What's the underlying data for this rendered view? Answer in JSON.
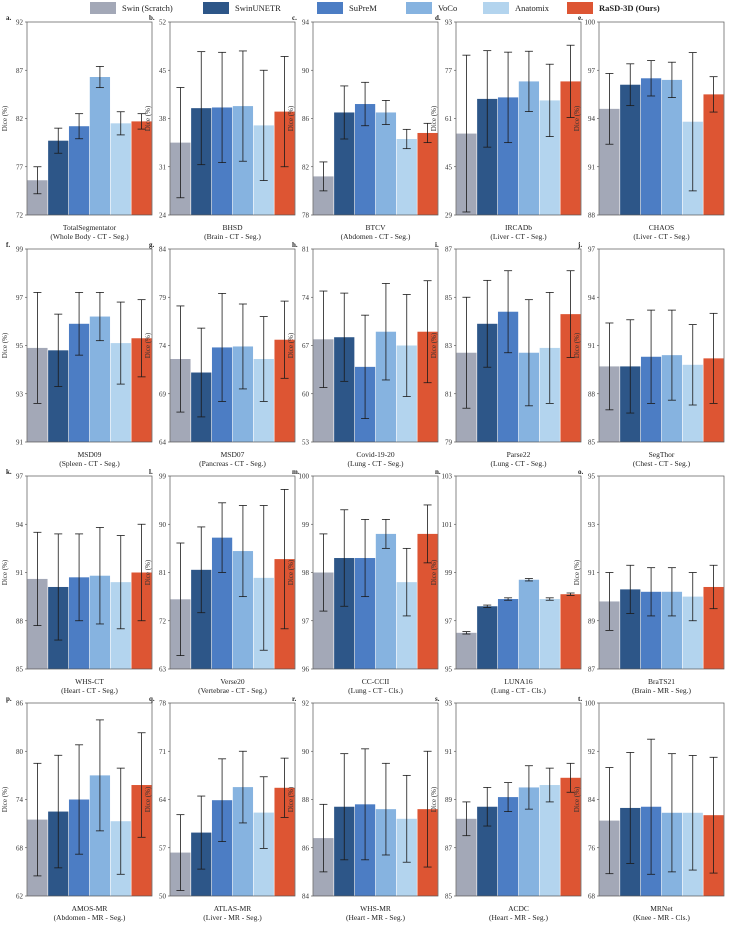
{
  "legend": [
    {
      "name": "Swin (Scratch)",
      "color": "#a3a8b7"
    },
    {
      "name": "SwinUNETR",
      "color": "#2d5688"
    },
    {
      "name": "SuPreM",
      "color": "#4c7dc4"
    },
    {
      "name": "VoCo",
      "color": "#86b3e0"
    },
    {
      "name": "Anatomix",
      "color": "#b3d4ee"
    },
    {
      "name": "RaSD-3D (Ours)",
      "color": "#dd5533"
    }
  ],
  "y_axis_label": "Dice (%)",
  "chart_data": [
    {
      "type": "bar",
      "letter": "a.",
      "ylabel": "Dice (%)",
      "ylim": [
        72,
        92
      ],
      "yticks": [
        72,
        77,
        82,
        87,
        92
      ],
      "xlabel": [
        "TotalSegmentator",
        "(Whole Body - CT - Seg.)"
      ],
      "values": [
        75.6,
        79.7,
        81.2,
        86.3,
        81.5,
        81.7
      ],
      "errors": [
        1.4,
        1.3,
        1.3,
        1.1,
        1.2,
        0.8
      ]
    },
    {
      "type": "bar",
      "letter": "b.",
      "ylabel": "Dice (%)",
      "ylim": [
        24,
        52
      ],
      "yticks": [
        24,
        31,
        38,
        45,
        52
      ],
      "xlabel": [
        "BHSD",
        "(Brain - CT - Seg.)"
      ],
      "values": [
        34.5,
        39.5,
        39.6,
        39.8,
        37.0,
        39.0
      ],
      "errors": [
        8.0,
        8.2,
        8.0,
        8.0,
        8.0,
        8.0
      ]
    },
    {
      "type": "bar",
      "letter": "c.",
      "ylabel": "Dice (%)",
      "ylim": [
        78,
        94
      ],
      "yticks": [
        78,
        82,
        86,
        90,
        94
      ],
      "xlabel": [
        "BTCV",
        "(Abdomen - CT - Seg.)"
      ],
      "values": [
        81.2,
        86.5,
        87.2,
        86.5,
        84.3,
        84.8
      ],
      "errors": [
        1.2,
        2.2,
        1.8,
        1.0,
        0.8,
        0.8
      ]
    },
    {
      "type": "bar",
      "letter": "d.",
      "ylabel": "Dice (%)",
      "ylim": [
        29,
        93
      ],
      "yticks": [
        29,
        45,
        61,
        77,
        93
      ],
      "xlabel": [
        "IRCADb",
        "(Liver - CT - Seg.)"
      ],
      "values": [
        56.0,
        67.5,
        68.0,
        73.3,
        67.0,
        73.3
      ],
      "errors": [
        26.0,
        16.0,
        15.0,
        10.0,
        12.0,
        12.0
      ]
    },
    {
      "type": "bar",
      "letter": "e.",
      "ylabel": "Dice (%)",
      "ylim": [
        88,
        100
      ],
      "yticks": [
        88,
        91,
        94,
        97,
        100
      ],
      "xlabel": [
        "CHAOS",
        "(Liver - CT - Seg.)"
      ],
      "values": [
        94.6,
        96.1,
        96.5,
        96.4,
        93.8,
        95.5
      ],
      "errors": [
        2.2,
        1.3,
        1.1,
        1.1,
        4.3,
        1.1
      ]
    },
    {
      "type": "bar",
      "letter": "f.",
      "ylabel": "Dice (%)",
      "ylim": [
        91,
        99
      ],
      "yticks": [
        91,
        93,
        95,
        97,
        99
      ],
      "xlabel": [
        "MSD09",
        "(Spleen - CT - Seg.)"
      ],
      "values": [
        94.9,
        94.8,
        95.9,
        96.2,
        95.1,
        95.3
      ],
      "errors": [
        2.3,
        1.5,
        1.3,
        1.0,
        1.7,
        1.6
      ]
    },
    {
      "type": "bar",
      "letter": "g.",
      "ylabel": "Dice (%)",
      "ylim": [
        64,
        84
      ],
      "yticks": [
        64,
        69,
        74,
        79,
        84
      ],
      "xlabel": [
        "MSD07",
        "(Pancreas - CT - Seg.)"
      ],
      "values": [
        72.6,
        71.2,
        73.8,
        73.9,
        72.6,
        74.6
      ],
      "errors": [
        5.5,
        4.6,
        5.6,
        4.4,
        4.4,
        4.0
      ]
    },
    {
      "type": "bar",
      "letter": "h.",
      "ylabel": "Dice (%)",
      "ylim": [
        53,
        81
      ],
      "yticks": [
        53,
        60,
        67,
        74,
        81
      ],
      "xlabel": [
        "Covid-19-20",
        "(Lung - CT - Seg.)"
      ],
      "values": [
        67.9,
        68.2,
        63.9,
        69.0,
        67.0,
        69.0
      ],
      "errors": [
        7.0,
        6.4,
        7.5,
        7.0,
        7.4,
        7.4
      ]
    },
    {
      "type": "bar",
      "letter": "i.",
      "ylabel": "Dice (%)",
      "ylim": [
        79,
        87
      ],
      "yticks": [
        79,
        81,
        83,
        85,
        87
      ],
      "xlabel": [
        "Parse22",
        "(Lung - CT - Seg.)"
      ],
      "values": [
        82.7,
        83.9,
        84.4,
        82.7,
        82.9,
        84.3
      ],
      "errors": [
        2.3,
        1.8,
        1.7,
        2.2,
        2.3,
        1.8
      ]
    },
    {
      "type": "bar",
      "letter": "j.",
      "ylabel": "Dice (%)",
      "ylim": [
        85,
        97
      ],
      "yticks": [
        85,
        88,
        91,
        94,
        97
      ],
      "xlabel": [
        "SegThor",
        "(Chest - CT - Seg.)"
      ],
      "values": [
        89.7,
        89.7,
        90.3,
        90.4,
        89.8,
        90.2
      ],
      "errors": [
        2.7,
        2.9,
        2.9,
        2.8,
        2.5,
        2.8
      ]
    },
    {
      "type": "bar",
      "letter": "k.",
      "ylabel": "Dice (%)",
      "ylim": [
        85,
        97
      ],
      "yticks": [
        85,
        88,
        91,
        94,
        97
      ],
      "xlabel": [
        "WHS-CT",
        "(Heart - CT - Seg.)"
      ],
      "values": [
        90.6,
        90.1,
        90.7,
        90.8,
        90.4,
        91.0
      ],
      "errors": [
        2.9,
        3.3,
        2.7,
        3.0,
        2.9,
        3.0
      ]
    },
    {
      "type": "bar",
      "letter": "l.",
      "ylabel": "Dice (%)",
      "ylim": [
        63,
        99
      ],
      "yticks": [
        63,
        72,
        81,
        90,
        99
      ],
      "xlabel": [
        "Verse20",
        "(Vertebrae - CT - Seg.)"
      ],
      "values": [
        76.0,
        81.5,
        87.5,
        85.0,
        80.0,
        83.5
      ],
      "errors": [
        10.5,
        8.0,
        6.5,
        8.5,
        13.5,
        13.0
      ]
    },
    {
      "type": "bar",
      "letter": "m.",
      "ylabel": "Dice (%)",
      "ylim": [
        96,
        100
      ],
      "yticks": [
        96,
        97,
        98,
        99,
        100
      ],
      "xlabel": [
        "CC-CCII",
        "(Lung - CT - Cls.)"
      ],
      "values": [
        98.0,
        98.3,
        98.3,
        98.8,
        97.8,
        98.8
      ],
      "errors": [
        0.8,
        1.0,
        0.8,
        0.3,
        0.7,
        0.6
      ]
    },
    {
      "type": "bar",
      "letter": "n.",
      "ylabel": "Dice (%)",
      "ylim": [
        95,
        103
      ],
      "yticks": [
        95,
        97,
        99,
        101,
        103
      ],
      "xlabel": [
        "LUNA16",
        "(Lung - CT - Cls.)"
      ],
      "values": [
        96.5,
        97.6,
        97.9,
        98.7,
        97.9,
        98.1
      ],
      "errors": [
        0.05,
        0.05,
        0.05,
        0.05,
        0.05,
        0.05
      ]
    },
    {
      "type": "bar",
      "letter": "o.",
      "ylabel": "Dice (%)",
      "ylim": [
        87,
        95
      ],
      "yticks": [
        87,
        89,
        91,
        93,
        95
      ],
      "xlabel": [
        "BraTS21",
        "(Brain - MR - Seg.)"
      ],
      "values": [
        89.8,
        90.3,
        90.2,
        90.2,
        90.0,
        90.4
      ],
      "errors": [
        1.2,
        1.0,
        1.0,
        1.0,
        1.0,
        0.9
      ]
    },
    {
      "type": "bar",
      "letter": "p.",
      "ylabel": "Dice (%)",
      "ylim": [
        62,
        86
      ],
      "yticks": [
        62,
        68,
        74,
        80,
        86
      ],
      "xlabel": [
        "AMOS-MR",
        "(Abdomen - MR - Seg.)"
      ],
      "values": [
        71.5,
        72.5,
        74.0,
        77.0,
        71.3,
        75.8
      ],
      "errors": [
        7.0,
        7.0,
        6.8,
        6.9,
        6.6,
        6.5
      ]
    },
    {
      "type": "bar",
      "letter": "q.",
      "ylabel": "Dice (%)",
      "ylim": [
        50,
        78
      ],
      "yticks": [
        50,
        57,
        64,
        71,
        78
      ],
      "xlabel": [
        "ATLAS-MR",
        "(Liver - MR - Seg.)"
      ],
      "values": [
        56.3,
        59.2,
        63.9,
        65.8,
        62.1,
        65.7
      ],
      "errors": [
        5.5,
        5.3,
        6.0,
        5.2,
        5.2,
        4.3
      ]
    },
    {
      "type": "bar",
      "letter": "r.",
      "ylabel": "Dice (%)",
      "ylim": [
        84,
        92
      ],
      "yticks": [
        84,
        86,
        88,
        90,
        92
      ],
      "xlabel": [
        "WHS-MR",
        "(Heart - MR - Seg.)"
      ],
      "values": [
        86.4,
        87.7,
        87.8,
        87.6,
        87.2,
        87.6
      ],
      "errors": [
        1.4,
        2.2,
        2.3,
        1.9,
        1.8,
        2.4
      ]
    },
    {
      "type": "bar",
      "letter": "s.",
      "ylabel": "Dice (%)",
      "ylim": [
        85,
        93
      ],
      "yticks": [
        85,
        87,
        89,
        91,
        93
      ],
      "xlabel": [
        "ACDC",
        "(Heart - MR - Seg.)"
      ],
      "values": [
        88.2,
        88.7,
        89.1,
        89.5,
        89.6,
        89.9
      ],
      "errors": [
        0.7,
        0.8,
        0.6,
        0.9,
        0.7,
        0.6
      ]
    },
    {
      "type": "bar",
      "letter": "t.",
      "ylabel": "Dice (%)",
      "ylim": [
        68,
        100
      ],
      "yticks": [
        68,
        76,
        84,
        92,
        100
      ],
      "xlabel": [
        "MRNet",
        "(Knee - MR - Cls.)"
      ],
      "values": [
        80.5,
        82.6,
        82.8,
        81.8,
        81.8,
        81.4
      ],
      "errors": [
        8.8,
        9.2,
        11.2,
        9.8,
        9.5,
        9.6
      ]
    }
  ]
}
